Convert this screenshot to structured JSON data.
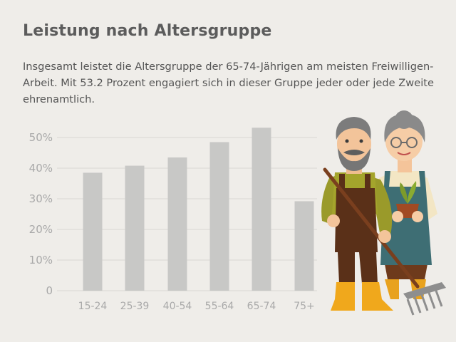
{
  "header": {
    "title": "Leistung nach Altersgruppe",
    "intro": "Insgesamt leistet die Altersgruppe der 65-74-Jährigen am meisten Freiwilligen-Arbeit. Mit 53.2 Prozent engagiert sich in dieser Gruppe jeder oder jede Zweite ehrenamtlich."
  },
  "chart_data": {
    "type": "bar",
    "categories": [
      "15-24",
      "25-39",
      "40-54",
      "55-64",
      "65-74",
      "75+"
    ],
    "values": [
      38.5,
      40.8,
      43.5,
      48.5,
      53.2,
      29.2
    ],
    "ylim": [
      0,
      50
    ],
    "yticks": [
      0,
      10,
      20,
      30,
      40,
      50
    ],
    "ytick_labels": [
      "0",
      "10%",
      "20%",
      "30%",
      "40%",
      "50%"
    ],
    "grid": true,
    "legend": "none",
    "colors": {
      "bar": "#c8c8c6",
      "grid": "#d8d6d2",
      "tick_text": "#a9a9a9"
    }
  },
  "illustration": {
    "description_icon": "senior-gardeners-icon"
  }
}
